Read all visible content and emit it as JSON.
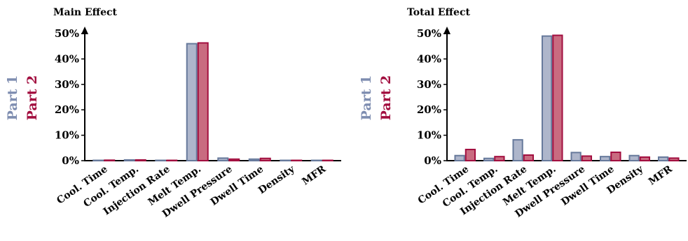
{
  "colors": {
    "part1_fill": "#aeb6cb",
    "part1_stroke": "#66799b",
    "part2_fill": "#c96b80",
    "part2_stroke": "#a20e3f",
    "part1_text": "#7e8db0",
    "part2_text": "#a20e3f"
  },
  "chart_data": [
    {
      "type": "bar",
      "title": "Main Effect",
      "categories": [
        "Cool. Time",
        "Cool. Temp.",
        "Injection Rate",
        "Melt Temp.",
        "Dwell Pressure",
        "Dwell Time",
        "Density",
        "MFR"
      ],
      "series": [
        {
          "name": "Part 1",
          "values": [
            0.1,
            0.3,
            0.1,
            46.0,
            1.0,
            0.6,
            0.1,
            0.1
          ]
        },
        {
          "name": "Part 2",
          "values": [
            0.2,
            0.3,
            0.1,
            46.3,
            0.6,
            0.9,
            0.1,
            0.1
          ]
        }
      ],
      "yticks": [
        "0%",
        "10%",
        "20%",
        "30%",
        "40%",
        "50%"
      ],
      "ylim": [
        0,
        50
      ],
      "legend": "left"
    },
    {
      "type": "bar",
      "title": "Total Effect",
      "categories": [
        "Cool. Time",
        "Cool. Temp.",
        "Injection Rate",
        "Melt Temp.",
        "Dwell Pressure",
        "Dwell Time",
        "Density",
        "MFR"
      ],
      "series": [
        {
          "name": "Part 1",
          "values": [
            2.0,
            0.9,
            8.2,
            49.0,
            3.2,
            1.6,
            2.0,
            1.4
          ]
        },
        {
          "name": "Part 2",
          "values": [
            4.4,
            1.6,
            2.2,
            49.3,
            1.8,
            3.3,
            1.4,
            1.0
          ]
        }
      ],
      "yticks": [
        "0%",
        "10%",
        "20%",
        "30%",
        "40%",
        "50%"
      ],
      "ylim": [
        0,
        50
      ],
      "legend": "left"
    }
  ]
}
